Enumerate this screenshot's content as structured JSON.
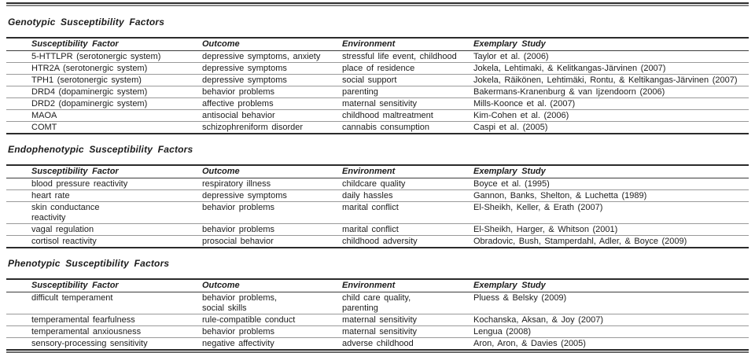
{
  "columns": {
    "factor": "Susceptibility Factor",
    "outcome": "Outcome",
    "environment": "Environment",
    "study": "Exemplary Study"
  },
  "sections": [
    {
      "title": "Genotypic Susceptibility Factors",
      "rows": [
        [
          "5-HTTLPR (serotonergic system)",
          "depressive symptoms, anxiety",
          "stressful life event, childhood",
          "Taylor et al. (2006)"
        ],
        [
          "HTR2A (serotonergic system)",
          "depressive symptoms",
          "place of residence",
          "Jokela, Lehtimaki, & Kelitkangas-Järvinen (2007)"
        ],
        [
          "TPH1 (serotonergic system)",
          "depressive symptoms",
          "social support",
          "Jokela, Räikönen, Lehtimäki, Rontu, & Keltikangas-Järvinen (2007)"
        ],
        [
          "DRD4 (dopaminergic system)",
          "behavior problems",
          "parenting",
          "Bakermans-Kranenburg & van Ijzendoorn (2006)"
        ],
        [
          "DRD2 (dopaminergic system)",
          "affective problems",
          "maternal sensitivity",
          "Mills-Koonce et al. (2007)"
        ],
        [
          "MAOA",
          "antisocial behavior",
          "childhood maltreatment",
          "Kim-Cohen et al. (2006)"
        ],
        [
          "COMT",
          "schizophreniform disorder",
          "cannabis consumption",
          "Caspi et al. (2005)"
        ]
      ]
    },
    {
      "title": "Endophenotypic Susceptibility Factors",
      "rows": [
        [
          "blood pressure reactivity",
          "respiratory illness",
          "childcare quality",
          "Boyce et al. (1995)"
        ],
        [
          "heart rate",
          "depressive symptoms",
          "daily hassles",
          "Gannon, Banks, Shelton, & Luchetta (1989)"
        ],
        [
          "skin conductance\nreactivity",
          "behavior problems",
          "marital conflict",
          "El-Sheikh, Keller, & Erath (2007)"
        ],
        [
          "vagal regulation",
          "behavior problems",
          "marital conflict",
          "El-Sheikh, Harger, & Whitson (2001)"
        ],
        [
          "cortisol reactivity",
          "prosocial behavior",
          "childhood adversity",
          "Obradovic, Bush, Stamperdahl, Adler, & Boyce (2009)"
        ]
      ]
    },
    {
      "title": "Phenotypic Susceptibility Factors",
      "rows": [
        [
          "difficult temperament",
          "behavior problems,\nsocial skills",
          "child care quality,\nparenting",
          "Pluess & Belsky (2009)"
        ],
        [
          "temperamental fearfulness",
          "rule-compatible conduct",
          "maternal sensitivity",
          "Kochanska, Aksan, & Joy (2007)"
        ],
        [
          "temperamental anxiousness",
          "behavior problems",
          "maternal sensitivity",
          "Lengua (2008)"
        ],
        [
          "sensory-processing sensitivity",
          "negative affectivity",
          "adverse childhood",
          "Aron, Aron, & Davies (2005)"
        ]
      ]
    }
  ]
}
